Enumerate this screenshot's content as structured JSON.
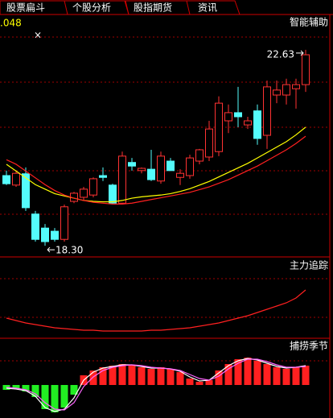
{
  "tabs": [
    "股票扁斗",
    "个股分析",
    "股指期货",
    "资讯"
  ],
  "header": {
    "code_fragment": ".048",
    "icon": "×"
  },
  "chart_data": [
    {
      "type": "candlestick",
      "title": "智能辅助",
      "open": [
        19.85,
        19.64,
        19.89,
        19.0,
        18.69,
        18.62,
        18.44,
        19.28,
        19.37,
        19.42,
        19.85,
        19.64,
        19.24,
        20.14,
        19.96,
        19.99,
        19.73,
        20.17,
        19.81,
        19.85,
        20.17,
        20.26,
        20.38,
        21.06,
        21.24,
        20.97,
        21.28,
        20.74,
        21.63,
        21.63,
        21.77,
        21.86
      ],
      "high": [
        19.96,
        19.96,
        20.03,
        19.07,
        18.78,
        18.69,
        19.21,
        19.49,
        19.6,
        19.81,
        20.03,
        19.67,
        20.38,
        20.24,
        20.03,
        20.42,
        20.38,
        20.24,
        19.99,
        20.31,
        20.44,
        21.06,
        21.6,
        21.42,
        21.81,
        21.15,
        21.42,
        21.95,
        21.95,
        21.99,
        21.99,
        22.63
      ],
      "low": [
        19.64,
        19.6,
        19.07,
        18.39,
        18.3,
        18.39,
        18.39,
        19.24,
        19.31,
        19.37,
        19.73,
        19.21,
        19.21,
        19.96,
        19.9,
        19.73,
        19.67,
        19.96,
        19.64,
        19.78,
        20.1,
        20.17,
        20.28,
        20.79,
        20.92,
        20.88,
        20.53,
        20.44,
        21.45,
        21.42,
        21.33,
        21.7
      ],
      "close": [
        19.67,
        19.9,
        19.14,
        18.44,
        18.39,
        18.44,
        19.16,
        19.46,
        19.55,
        19.78,
        19.81,
        19.24,
        20.28,
        20.06,
        20.01,
        19.76,
        20.28,
        19.96,
        19.9,
        20.24,
        20.42,
        20.88,
        21.45,
        21.24,
        21.15,
        21.06,
        20.67,
        21.81,
        21.74,
        21.86,
        21.86,
        22.52
      ],
      "up_color": "#ff3232",
      "down_color": "#54fcfc",
      "ma_lines": [
        {
          "color": "#ffff00",
          "values": [
            20.1,
            19.95,
            19.8,
            19.65,
            19.55,
            19.45,
            19.4,
            19.35,
            19.3,
            19.28,
            19.27,
            19.27,
            19.3,
            19.35,
            19.38,
            19.4,
            19.42,
            19.45,
            19.5,
            19.56,
            19.64,
            19.72,
            19.82,
            19.92,
            20.02,
            20.12,
            20.24,
            20.36,
            20.48,
            20.6,
            20.75,
            20.92
          ]
        },
        {
          "color": "#ff2020",
          "values": [
            20.2,
            20.1,
            19.95,
            19.8,
            19.65,
            19.52,
            19.42,
            19.35,
            19.3,
            19.26,
            19.24,
            19.22,
            19.22,
            19.24,
            19.28,
            19.32,
            19.36,
            19.4,
            19.44,
            19.48,
            19.54,
            19.6,
            19.68,
            19.76,
            19.86,
            19.96,
            20.06,
            20.18,
            20.3,
            20.42,
            20.56,
            20.72
          ]
        }
      ],
      "annotations": [
        "22.63",
        "18.30"
      ],
      "ylim": [
        18.07,
        23.41
      ]
    },
    {
      "type": "line",
      "title": "主力追踪",
      "color": "#ff2020",
      "values": [
        25,
        22,
        19,
        17,
        15,
        13,
        12,
        11,
        10,
        10,
        9,
        9,
        9,
        9,
        9,
        10,
        10,
        11,
        12,
        13,
        15,
        17,
        19,
        22,
        25,
        28,
        32,
        36,
        40,
        44,
        50,
        60
      ],
      "ylim": [
        0,
        100
      ]
    },
    {
      "type": "bar_line",
      "title": "捕捞季节",
      "pos_color": "#ff2020",
      "neg_color": "#22ee22",
      "values": [
        -6,
        -5,
        -8,
        -15,
        -30,
        -34,
        -28,
        -12,
        12,
        18,
        22,
        24,
        26,
        25,
        22,
        20,
        22,
        20,
        16,
        8,
        4,
        6,
        18,
        26,
        32,
        34,
        30,
        26,
        22,
        20,
        22,
        24
      ],
      "lines": [
        {
          "color": "#ffffff",
          "values": [
            -4,
            -5,
            -7,
            -14,
            -28,
            -33,
            -30,
            -16,
            6,
            16,
            21,
            23,
            25,
            25,
            23,
            21,
            21,
            20,
            17,
            10,
            5,
            6,
            15,
            24,
            30,
            33,
            31,
            27,
            23,
            21,
            22,
            24
          ]
        },
        {
          "color": "#ff66ff",
          "values": [
            -3,
            -4,
            -6,
            -11,
            -22,
            -30,
            -31,
            -22,
            -2,
            10,
            18,
            22,
            24,
            25,
            24,
            22,
            21,
            20,
            18,
            13,
            8,
            6,
            11,
            20,
            27,
            32,
            32,
            29,
            25,
            22,
            22,
            23
          ]
        }
      ],
      "ylim": [
        -41,
        58
      ]
    }
  ]
}
